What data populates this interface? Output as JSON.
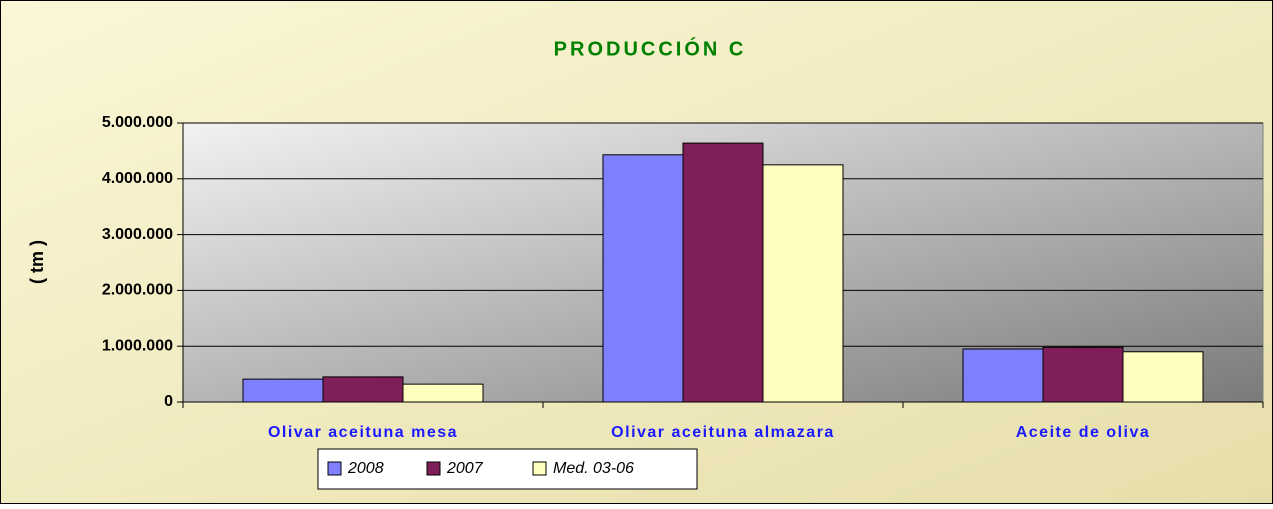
{
  "chart_data": {
    "type": "bar",
    "title": "PRODUCCIÓN C",
    "y_label": "( tm )",
    "categories": [
      "Olivar aceituna mesa",
      "Olivar aceituna almazara",
      "Aceite de oliva"
    ],
    "series": [
      {
        "name": "2008",
        "color": "#8080ff",
        "values": [
          410000,
          4430000,
          950000
        ]
      },
      {
        "name": "2007",
        "color": "#7f1f5a",
        "values": [
          450000,
          4640000,
          980000
        ]
      },
      {
        "name": "Med. 03-06",
        "color": "#ffffc0",
        "values": [
          320000,
          4250000,
          900000
        ]
      }
    ],
    "ylim": [
      0,
      5000000
    ],
    "yticks": [
      {
        "value": 0,
        "label": "0"
      },
      {
        "value": 1000000,
        "label": "1.000.000"
      },
      {
        "value": 2000000,
        "label": "2.000.000"
      },
      {
        "value": 3000000,
        "label": "3.000.000"
      },
      {
        "value": 4000000,
        "label": "4.000.000"
      },
      {
        "value": 5000000,
        "label": "5.000.000"
      }
    ],
    "grid": true,
    "legend": "bottom"
  }
}
